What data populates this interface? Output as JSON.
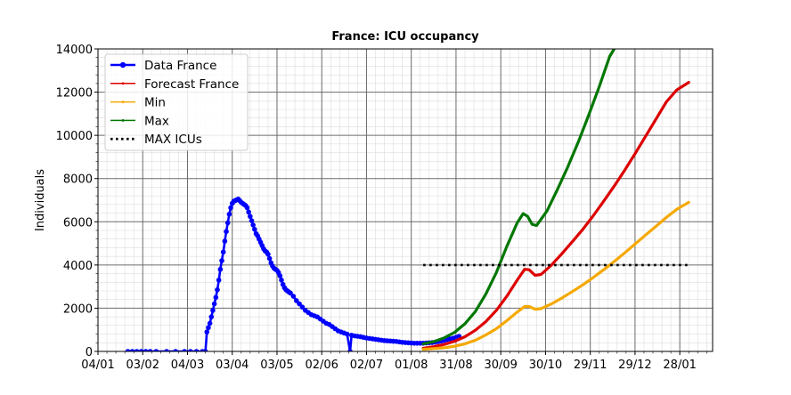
{
  "chart_data": {
    "type": "line",
    "title": "France: ICU occupancy",
    "xlabel": "",
    "ylabel": "Individuals",
    "x_range": [
      "2020-01-04",
      "2021-02-19"
    ],
    "ylim": [
      0,
      14000
    ],
    "y_ticks": [
      0,
      2000,
      4000,
      6000,
      8000,
      10000,
      12000,
      14000
    ],
    "x_ticks": [
      {
        "date": "2020-01-04",
        "label": "04/01"
      },
      {
        "date": "2020-02-03",
        "label": "03/02"
      },
      {
        "date": "2020-03-04",
        "label": "04/03"
      },
      {
        "date": "2020-04-03",
        "label": "03/04"
      },
      {
        "date": "2020-05-03",
        "label": "03/05"
      },
      {
        "date": "2020-06-02",
        "label": "02/06"
      },
      {
        "date": "2020-07-02",
        "label": "02/07"
      },
      {
        "date": "2020-08-01",
        "label": "01/08"
      },
      {
        "date": "2020-08-31",
        "label": "31/08"
      },
      {
        "date": "2020-09-30",
        "label": "30/09"
      },
      {
        "date": "2020-10-30",
        "label": "30/10"
      },
      {
        "date": "2020-11-29",
        "label": "29/11"
      },
      {
        "date": "2020-12-29",
        "label": "29/12"
      },
      {
        "date": "2021-01-28",
        "label": "28/01"
      }
    ],
    "grid": true,
    "legend_position": "top-left",
    "series": [
      {
        "name": "Data France",
        "color": "#0000ff",
        "marker": "circle",
        "points": [
          [
            "2020-01-24",
            0
          ],
          [
            "2020-01-27",
            0
          ],
          [
            "2020-01-30",
            0
          ],
          [
            "2020-02-02",
            0
          ],
          [
            "2020-02-05",
            0
          ],
          [
            "2020-02-08",
            0
          ],
          [
            "2020-02-12",
            0
          ],
          [
            "2020-02-19",
            0
          ],
          [
            "2020-02-25",
            0
          ],
          [
            "2020-03-02",
            0
          ],
          [
            "2020-03-06",
            0
          ],
          [
            "2020-03-10",
            0
          ],
          [
            "2020-03-14",
            0
          ],
          [
            "2020-03-16",
            0
          ],
          [
            "2020-03-17",
            900
          ],
          [
            "2020-03-18",
            1100
          ],
          [
            "2020-03-19",
            1300
          ],
          [
            "2020-03-20",
            1600
          ],
          [
            "2020-03-21",
            1900
          ],
          [
            "2020-03-22",
            2200
          ],
          [
            "2020-03-23",
            2500
          ],
          [
            "2020-03-24",
            2850
          ],
          [
            "2020-03-25",
            3300
          ],
          [
            "2020-03-26",
            3800
          ],
          [
            "2020-03-27",
            4200
          ],
          [
            "2020-03-28",
            4600
          ],
          [
            "2020-03-29",
            5100
          ],
          [
            "2020-03-30",
            5550
          ],
          [
            "2020-03-31",
            5950
          ],
          [
            "2020-04-01",
            6350
          ],
          [
            "2020-04-02",
            6650
          ],
          [
            "2020-04-03",
            6850
          ],
          [
            "2020-04-04",
            6950
          ],
          [
            "2020-04-05",
            6980
          ],
          [
            "2020-04-06",
            7020
          ],
          [
            "2020-04-07",
            7050
          ],
          [
            "2020-04-08",
            6980
          ],
          [
            "2020-04-09",
            6900
          ],
          [
            "2020-04-10",
            6850
          ],
          [
            "2020-04-11",
            6800
          ],
          [
            "2020-04-12",
            6750
          ],
          [
            "2020-04-13",
            6650
          ],
          [
            "2020-04-14",
            6450
          ],
          [
            "2020-04-15",
            6250
          ],
          [
            "2020-04-16",
            6050
          ],
          [
            "2020-04-17",
            5850
          ],
          [
            "2020-04-18",
            5650
          ],
          [
            "2020-04-19",
            5450
          ],
          [
            "2020-04-20",
            5350
          ],
          [
            "2020-04-21",
            5200
          ],
          [
            "2020-04-22",
            5050
          ],
          [
            "2020-04-23",
            4900
          ],
          [
            "2020-04-24",
            4750
          ],
          [
            "2020-04-25",
            4650
          ],
          [
            "2020-04-26",
            4600
          ],
          [
            "2020-04-27",
            4500
          ],
          [
            "2020-04-28",
            4300
          ],
          [
            "2020-04-29",
            4100
          ],
          [
            "2020-04-30",
            3950
          ],
          [
            "2020-05-01",
            3850
          ],
          [
            "2020-05-02",
            3800
          ],
          [
            "2020-05-03",
            3750
          ],
          [
            "2020-05-04",
            3650
          ],
          [
            "2020-05-05",
            3500
          ],
          [
            "2020-05-06",
            3300
          ],
          [
            "2020-05-07",
            3100
          ],
          [
            "2020-05-08",
            2950
          ],
          [
            "2020-05-09",
            2850
          ],
          [
            "2020-05-10",
            2800
          ],
          [
            "2020-05-11",
            2750
          ],
          [
            "2020-05-12",
            2700
          ],
          [
            "2020-05-14",
            2550
          ],
          [
            "2020-05-16",
            2350
          ],
          [
            "2020-05-18",
            2200
          ],
          [
            "2020-05-20",
            2050
          ],
          [
            "2020-05-22",
            1900
          ],
          [
            "2020-05-24",
            1800
          ],
          [
            "2020-05-26",
            1700
          ],
          [
            "2020-05-28",
            1650
          ],
          [
            "2020-05-30",
            1600
          ],
          [
            "2020-06-01",
            1500
          ],
          [
            "2020-06-03",
            1400
          ],
          [
            "2020-06-05",
            1300
          ],
          [
            "2020-06-07",
            1250
          ],
          [
            "2020-06-09",
            1150
          ],
          [
            "2020-06-11",
            1050
          ],
          [
            "2020-06-13",
            950
          ],
          [
            "2020-06-15",
            900
          ],
          [
            "2020-06-17",
            850
          ],
          [
            "2020-06-19",
            800
          ],
          [
            "2020-06-21",
            0
          ],
          [
            "2020-06-22",
            750
          ],
          [
            "2020-06-24",
            720
          ],
          [
            "2020-06-26",
            700
          ],
          [
            "2020-06-28",
            680
          ],
          [
            "2020-06-30",
            650
          ],
          [
            "2020-07-02",
            620
          ],
          [
            "2020-07-04",
            600
          ],
          [
            "2020-07-06",
            580
          ],
          [
            "2020-07-08",
            560
          ],
          [
            "2020-07-10",
            540
          ],
          [
            "2020-07-12",
            520
          ],
          [
            "2020-07-14",
            500
          ],
          [
            "2020-07-16",
            490
          ],
          [
            "2020-07-18",
            480
          ],
          [
            "2020-07-20",
            470
          ],
          [
            "2020-07-22",
            460
          ],
          [
            "2020-07-24",
            440
          ],
          [
            "2020-07-26",
            420
          ],
          [
            "2020-07-28",
            410
          ],
          [
            "2020-07-30",
            400
          ],
          [
            "2020-08-01",
            390
          ],
          [
            "2020-08-03",
            380
          ],
          [
            "2020-08-05",
            380
          ],
          [
            "2020-08-07",
            380
          ],
          [
            "2020-08-09",
            380
          ],
          [
            "2020-08-11",
            390
          ],
          [
            "2020-08-13",
            400
          ],
          [
            "2020-08-15",
            410
          ],
          [
            "2020-08-17",
            430
          ],
          [
            "2020-08-19",
            450
          ],
          [
            "2020-08-21",
            480
          ],
          [
            "2020-08-23",
            510
          ],
          [
            "2020-08-25",
            550
          ],
          [
            "2020-08-27",
            580
          ],
          [
            "2020-08-29",
            610
          ],
          [
            "2020-08-31",
            650
          ],
          [
            "2020-09-02",
            700
          ]
        ]
      },
      {
        "name": "Forecast France",
        "color": "#dd0000",
        "marker": "point",
        "points": [
          [
            "2020-08-09",
            150
          ],
          [
            "2020-08-16",
            220
          ],
          [
            "2020-08-23",
            320
          ],
          [
            "2020-08-30",
            470
          ],
          [
            "2020-09-06",
            680
          ],
          [
            "2020-09-13",
            980
          ],
          [
            "2020-09-20",
            1380
          ],
          [
            "2020-09-27",
            1900
          ],
          [
            "2020-10-04",
            2550
          ],
          [
            "2020-10-11",
            3300
          ],
          [
            "2020-10-16",
            3800
          ],
          [
            "2020-10-19",
            3780
          ],
          [
            "2020-10-23",
            3520
          ],
          [
            "2020-10-27",
            3560
          ],
          [
            "2020-11-03",
            4000
          ],
          [
            "2020-11-10",
            4520
          ],
          [
            "2020-11-17",
            5080
          ],
          [
            "2020-11-24",
            5650
          ],
          [
            "2020-12-01",
            6280
          ],
          [
            "2020-12-08",
            6950
          ],
          [
            "2020-12-15",
            7650
          ],
          [
            "2020-12-22",
            8380
          ],
          [
            "2020-12-29",
            9150
          ],
          [
            "2021-01-05",
            9950
          ],
          [
            "2021-01-12",
            10750
          ],
          [
            "2021-01-19",
            11550
          ],
          [
            "2021-01-26",
            12100
          ],
          [
            "2021-02-03",
            12450
          ]
        ]
      },
      {
        "name": "Min",
        "color": "#f5a800",
        "marker": "point",
        "points": [
          [
            "2020-08-09",
            100
          ],
          [
            "2020-08-16",
            130
          ],
          [
            "2020-08-23",
            170
          ],
          [
            "2020-08-30",
            240
          ],
          [
            "2020-09-06",
            350
          ],
          [
            "2020-09-13",
            520
          ],
          [
            "2020-09-20",
            760
          ],
          [
            "2020-09-27",
            1050
          ],
          [
            "2020-10-04",
            1420
          ],
          [
            "2020-10-11",
            1820
          ],
          [
            "2020-10-16",
            2080
          ],
          [
            "2020-10-19",
            2080
          ],
          [
            "2020-10-23",
            1950
          ],
          [
            "2020-10-27",
            1980
          ],
          [
            "2020-11-03",
            2200
          ],
          [
            "2020-11-10",
            2470
          ],
          [
            "2020-11-17",
            2770
          ],
          [
            "2020-11-24",
            3080
          ],
          [
            "2020-12-01",
            3420
          ],
          [
            "2020-12-08",
            3780
          ],
          [
            "2020-12-15",
            4160
          ],
          [
            "2020-12-22",
            4560
          ],
          [
            "2020-12-29",
            4970
          ],
          [
            "2021-01-05",
            5380
          ],
          [
            "2021-01-12",
            5790
          ],
          [
            "2021-01-19",
            6200
          ],
          [
            "2021-01-26",
            6580
          ],
          [
            "2021-02-03",
            6900
          ]
        ]
      },
      {
        "name": "Max",
        "color": "#007700",
        "marker": "point",
        "points": [
          [
            "2020-08-09",
            350
          ],
          [
            "2020-08-16",
            450
          ],
          [
            "2020-08-23",
            620
          ],
          [
            "2020-08-30",
            880
          ],
          [
            "2020-09-06",
            1280
          ],
          [
            "2020-09-13",
            1850
          ],
          [
            "2020-09-20",
            2650
          ],
          [
            "2020-09-27",
            3650
          ],
          [
            "2020-10-04",
            4850
          ],
          [
            "2020-10-11",
            5950
          ],
          [
            "2020-10-15",
            6380
          ],
          [
            "2020-10-18",
            6250
          ],
          [
            "2020-10-21",
            5880
          ],
          [
            "2020-10-24",
            5830
          ],
          [
            "2020-10-31",
            6500
          ],
          [
            "2020-11-07",
            7500
          ],
          [
            "2020-11-14",
            8550
          ],
          [
            "2020-11-21",
            9700
          ],
          [
            "2020-11-28",
            10950
          ],
          [
            "2020-12-05",
            12250
          ],
          [
            "2020-12-12",
            13650
          ],
          [
            "2020-12-15",
            14000
          ]
        ]
      },
      {
        "name": "MAX ICUs",
        "color": "#000000",
        "marker": "dotted",
        "points": [
          [
            "2020-08-09",
            4000
          ],
          [
            "2021-02-03",
            4000
          ]
        ]
      }
    ]
  }
}
